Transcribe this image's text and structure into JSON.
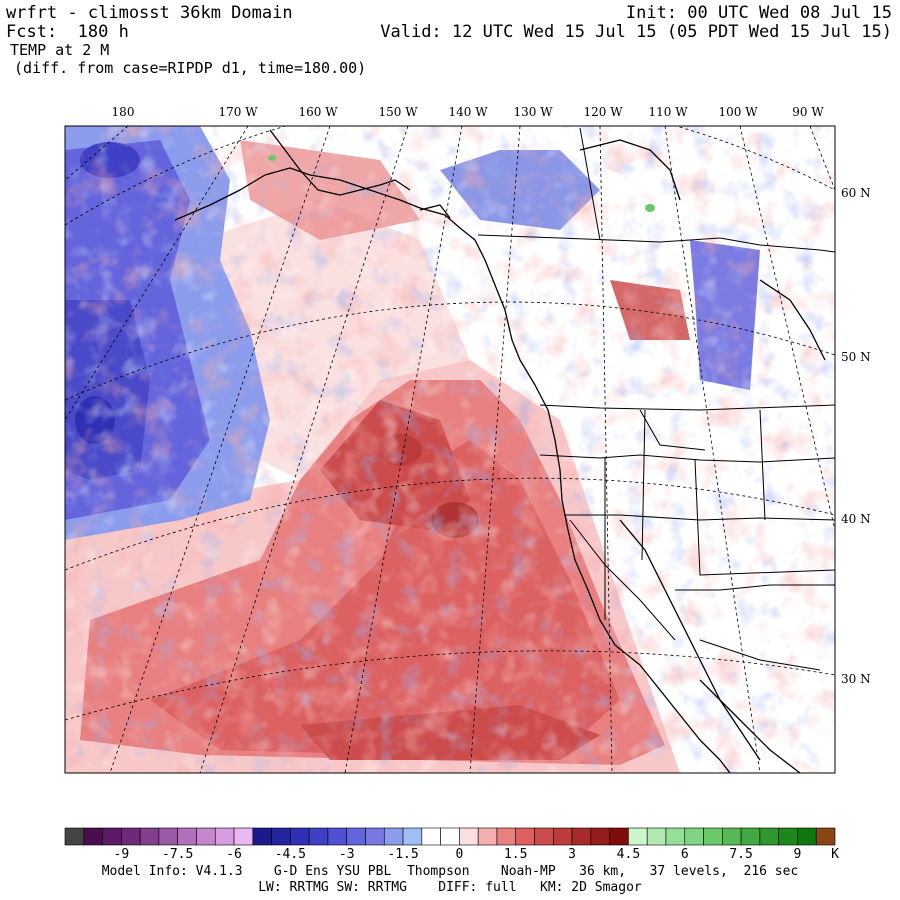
{
  "header": {
    "title_left": "wrfrt - climosst 36km Domain",
    "init": "Init: 00 UTC Wed 08 Jul 15",
    "fcst": "Fcst:  180 h",
    "valid": "Valid: 12 UTC Wed 15 Jul 15 (05 PDT Wed 15 Jul 15)",
    "field": "TEMP at 2 M",
    "diff": "(diff. from case=RIPDP d1, time=180.00)"
  },
  "map": {
    "lon_labels": [
      "180",
      "170 W",
      "160 W",
      "150 W",
      "140 W",
      "130 W",
      "120 W",
      "110 W",
      "100 W",
      "90 W"
    ],
    "lat_labels": [
      "60 N",
      "50 N",
      "40 N",
      "30 N"
    ]
  },
  "colorbar": {
    "colors": [
      "#444444",
      "#4a0e4e",
      "#5c1a66",
      "#6e2a78",
      "#80408a",
      "#9a5aa6",
      "#b070bb",
      "#c486cf",
      "#d89ce0",
      "#eab8f0",
      "#1a1a8c",
      "#2424a0",
      "#3030b4",
      "#4040c4",
      "#5050d0",
      "#6464dc",
      "#7878e4",
      "#8c9cec",
      "#a0bef4",
      "#ffffff",
      "#ffffff",
      "#fce0e0",
      "#f4b0b0",
      "#e88080",
      "#dc6060",
      "#cc4c4c",
      "#bc3c3c",
      "#a82a2a",
      "#941c1c",
      "#7e0c0c",
      "#ccf5cc",
      "#b0eab0",
      "#96e096",
      "#80d680",
      "#6ac86a",
      "#56b856",
      "#42a842",
      "#2e982e",
      "#1c881c",
      "#0e780e",
      "#8b4513"
    ],
    "tick_labels": [
      "-9",
      "-7.5",
      "-6",
      "-4.5",
      "-3",
      "-1.5",
      "0",
      "1.5",
      "3",
      "4.5",
      "6",
      "7.5",
      "9"
    ],
    "unit": "K"
  },
  "footer": {
    "line1": "Model Info: V4.1.3    G-D Ens YSU PBL  Thompson    Noah-MP   36 km,   37 levels,  216 sec",
    "line2": "LW: RRTMG SW: RRTMG    DIFF: full   KM: 2D Smagor"
  }
}
